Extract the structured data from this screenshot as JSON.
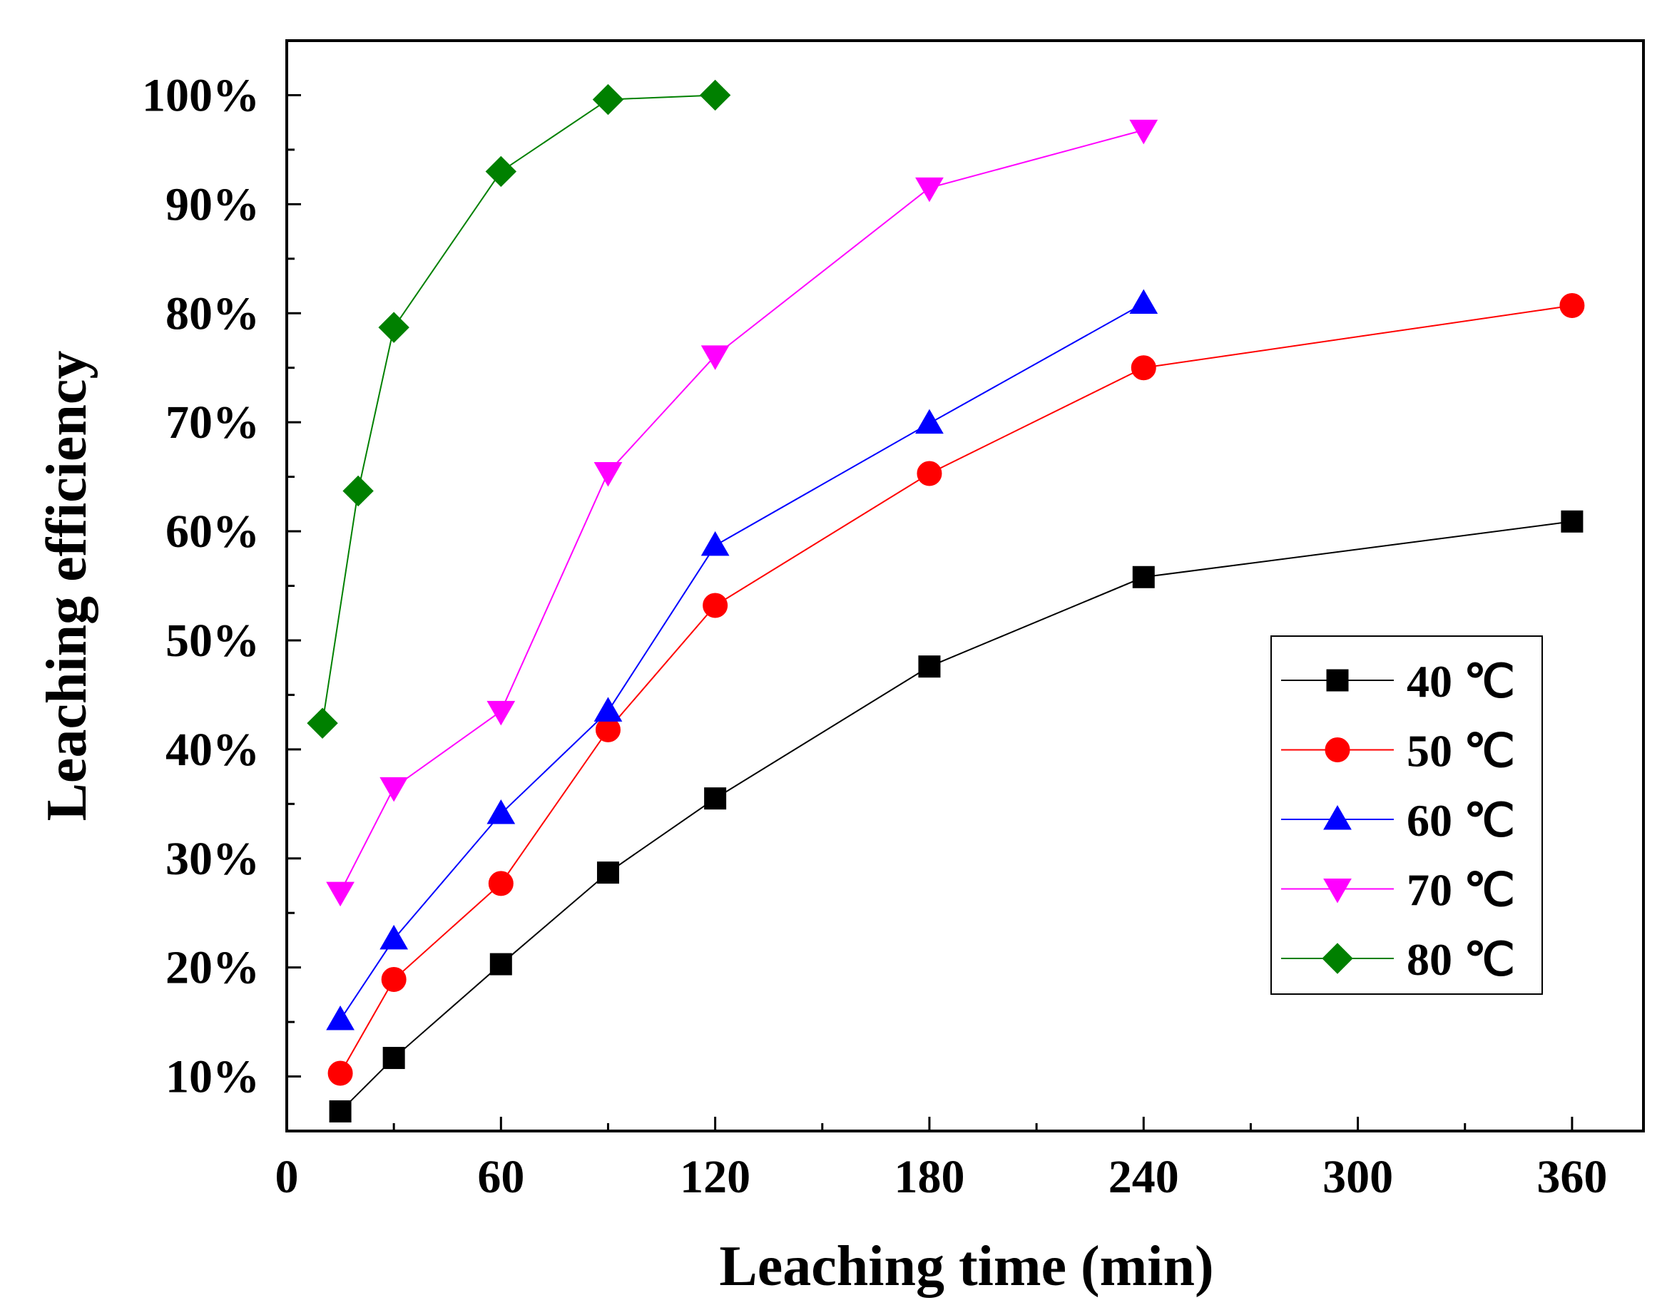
{
  "chart_data": {
    "type": "line",
    "title": "",
    "xlabel": "Leaching time (min)",
    "ylabel": "Leaching efficiency",
    "xlim": [
      0,
      380
    ],
    "ylim": [
      5,
      105
    ],
    "xticks": [
      0,
      60,
      120,
      180,
      240,
      300,
      360
    ],
    "xtick_labels": [
      "0",
      "60",
      "120",
      "180",
      "240",
      "300",
      "360"
    ],
    "yticks": [
      10,
      20,
      30,
      40,
      50,
      60,
      70,
      80,
      90,
      100
    ],
    "ytick_labels": [
      "10%",
      "20%",
      "30%",
      "40%",
      "50%",
      "60%",
      "70%",
      "80%",
      "90%",
      "100%"
    ],
    "grid": false,
    "legend_position": "right-middle",
    "series": [
      {
        "name": "40 ℃",
        "color": "#000000",
        "marker": "square",
        "x": [
          15,
          30,
          60,
          90,
          120,
          180,
          240,
          360
        ],
        "y": [
          6.8,
          11.7,
          20.3,
          28.7,
          35.5,
          47.6,
          55.8,
          60.9
        ]
      },
      {
        "name": "50 ℃",
        "color": "#ff0000",
        "marker": "circle",
        "x": [
          15,
          30,
          60,
          90,
          120,
          180,
          240,
          360
        ],
        "y": [
          10.3,
          18.9,
          27.7,
          41.8,
          53.2,
          65.3,
          75.0,
          80.7
        ]
      },
      {
        "name": "60 ℃",
        "color": "#0000ff",
        "marker": "triangle-up",
        "x": [
          15,
          30,
          60,
          90,
          120,
          180,
          240
        ],
        "y": [
          15.2,
          22.6,
          34.1,
          43.5,
          58.7,
          69.9,
          80.9
        ]
      },
      {
        "name": "70 ℃",
        "color": "#ff00ff",
        "marker": "triangle-down",
        "x": [
          15,
          30,
          60,
          90,
          120,
          180,
          240
        ],
        "y": [
          26.9,
          36.5,
          43.5,
          65.4,
          76.1,
          91.5,
          96.8
        ]
      },
      {
        "name": "80 ℃",
        "color": "#008000",
        "marker": "diamond",
        "x": [
          10,
          20,
          30,
          60,
          90,
          120
        ],
        "y": [
          42.4,
          63.7,
          78.7,
          93.0,
          99.6,
          100.0
        ]
      }
    ]
  }
}
